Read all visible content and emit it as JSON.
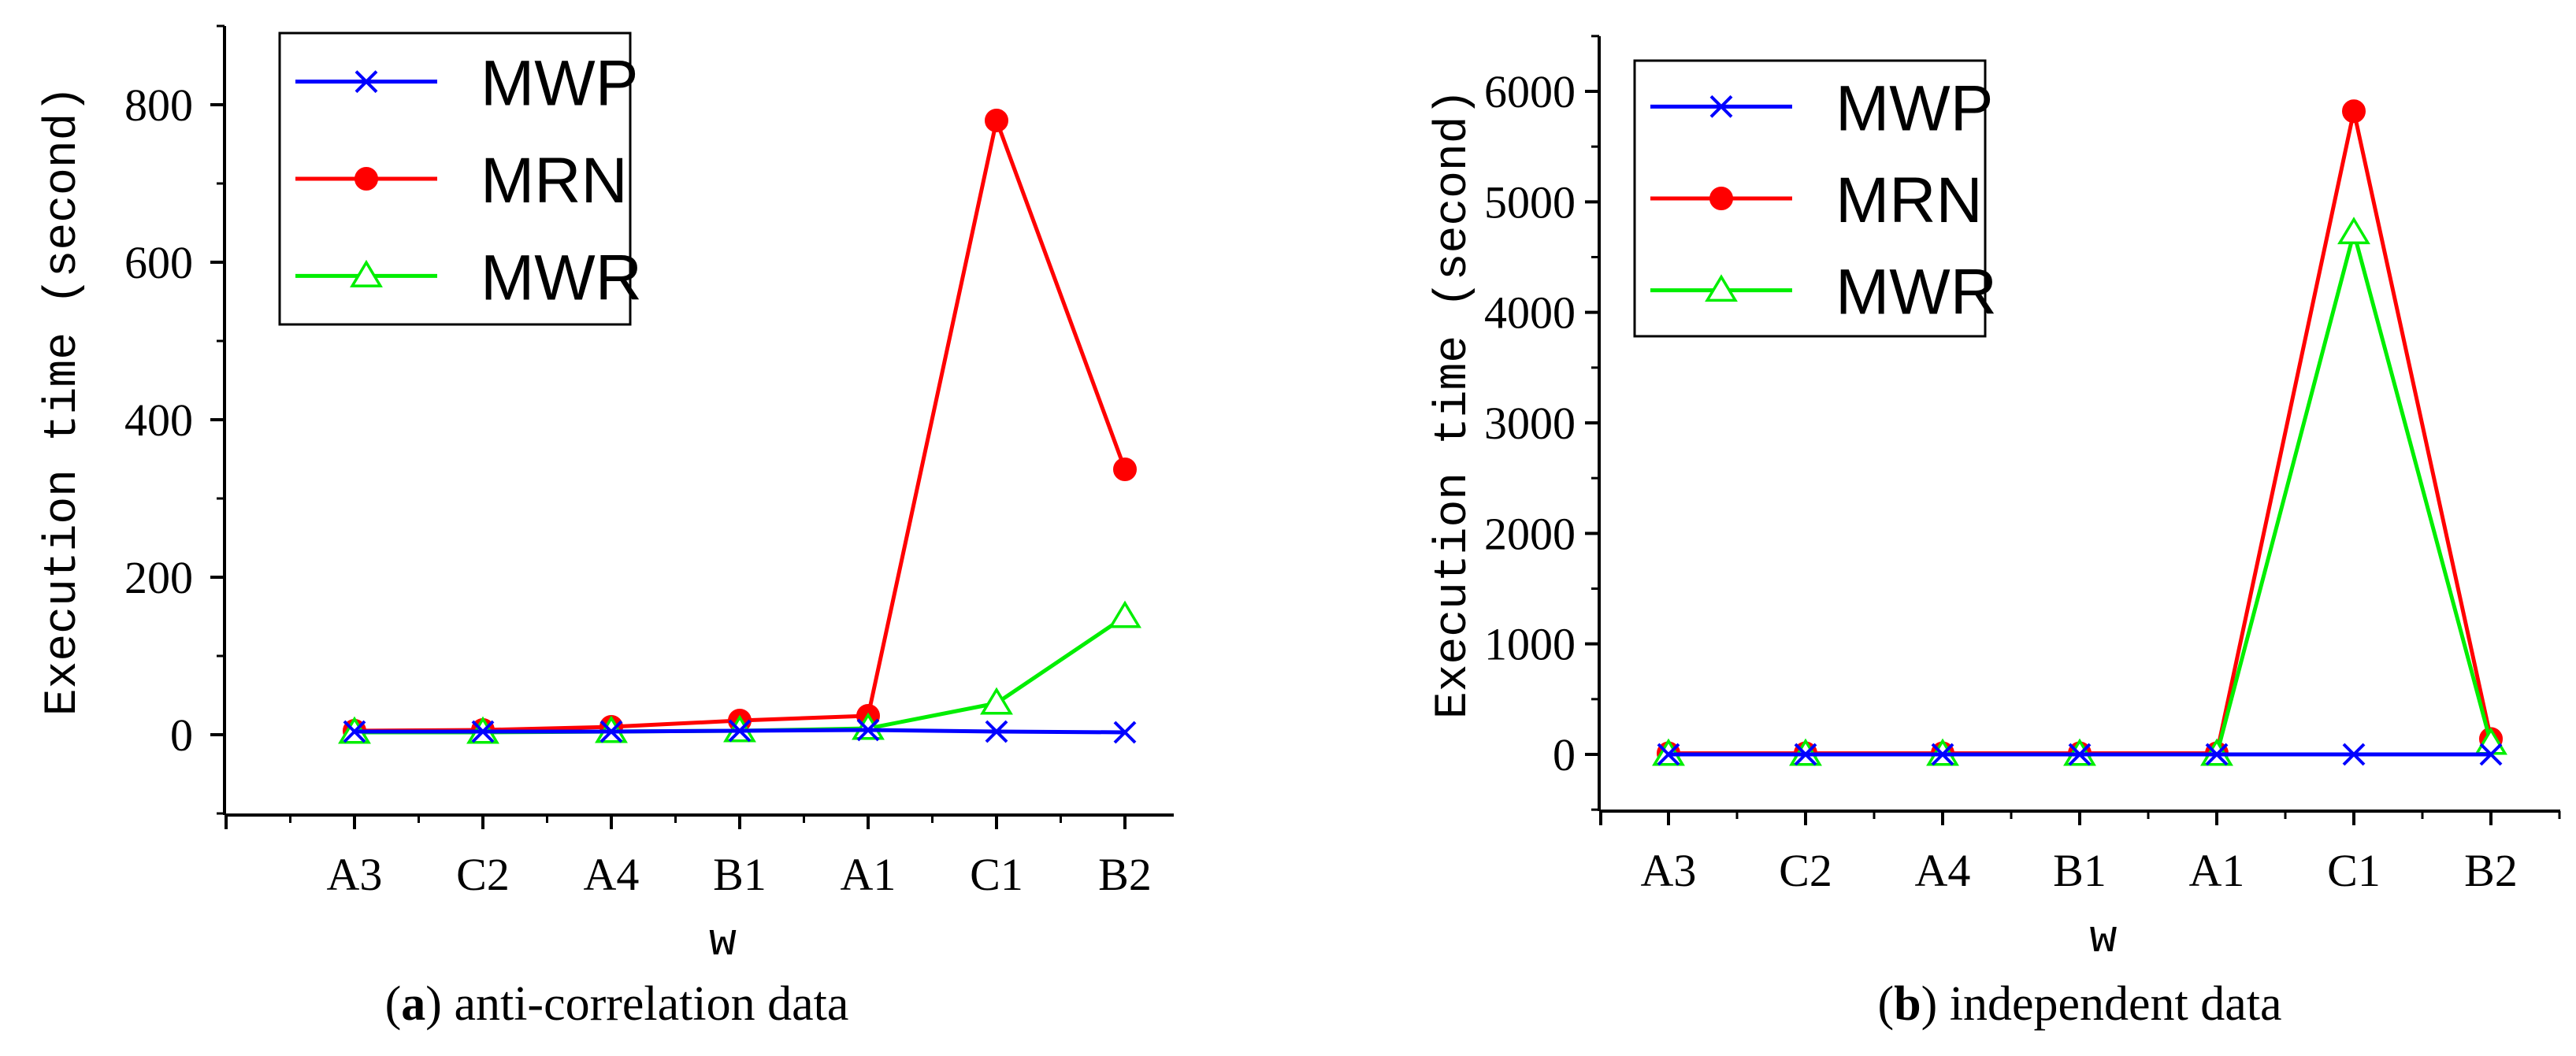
{
  "chart_data": [
    {
      "type": "line",
      "caption_letter": "a",
      "caption_text": "anti-correlation data",
      "xlabel": "w",
      "ylabel": "Execution time (second)",
      "categories": [
        "A3",
        "C2",
        "A4",
        "B1",
        "A1",
        "C1",
        "B2"
      ],
      "ylim": [
        -100,
        900
      ],
      "yticks": [
        0,
        200,
        400,
        600,
        800
      ],
      "legend_position": "top-left",
      "series": [
        {
          "name": "MWP",
          "marker": "x",
          "color": "#0000ff",
          "values": [
            4,
            4,
            4,
            5,
            6,
            4,
            3
          ]
        },
        {
          "name": "MRN",
          "marker": "circle",
          "color": "#ff0000",
          "values": [
            5,
            6,
            10,
            18,
            24,
            780,
            337
          ]
        },
        {
          "name": "MWR",
          "marker": "triangle",
          "color": "#00ee00",
          "values": [
            3,
            3,
            4,
            5,
            8,
            40,
            150
          ]
        }
      ]
    },
    {
      "type": "line",
      "caption_letter": "b",
      "caption_text": "independent data",
      "xlabel": "w",
      "ylabel": "Execution time (second)",
      "categories": [
        "A3",
        "C2",
        "A4",
        "B1",
        "A1",
        "C1",
        "B2"
      ],
      "ylim": [
        -500,
        6500
      ],
      "yticks": [
        0,
        1000,
        2000,
        3000,
        4000,
        5000,
        6000
      ],
      "legend_position": "top-left",
      "series": [
        {
          "name": "MWP",
          "marker": "x",
          "color": "#0000ff",
          "values": [
            0,
            0,
            0,
            0,
            0,
            0,
            0
          ]
        },
        {
          "name": "MRN",
          "marker": "circle",
          "color": "#ff0000",
          "values": [
            10,
            10,
            10,
            10,
            10,
            5820,
            140
          ]
        },
        {
          "name": "MWR",
          "marker": "triangle",
          "color": "#00ee00",
          "values": [
            0,
            0,
            0,
            0,
            0,
            4720,
            100
          ]
        }
      ]
    }
  ]
}
